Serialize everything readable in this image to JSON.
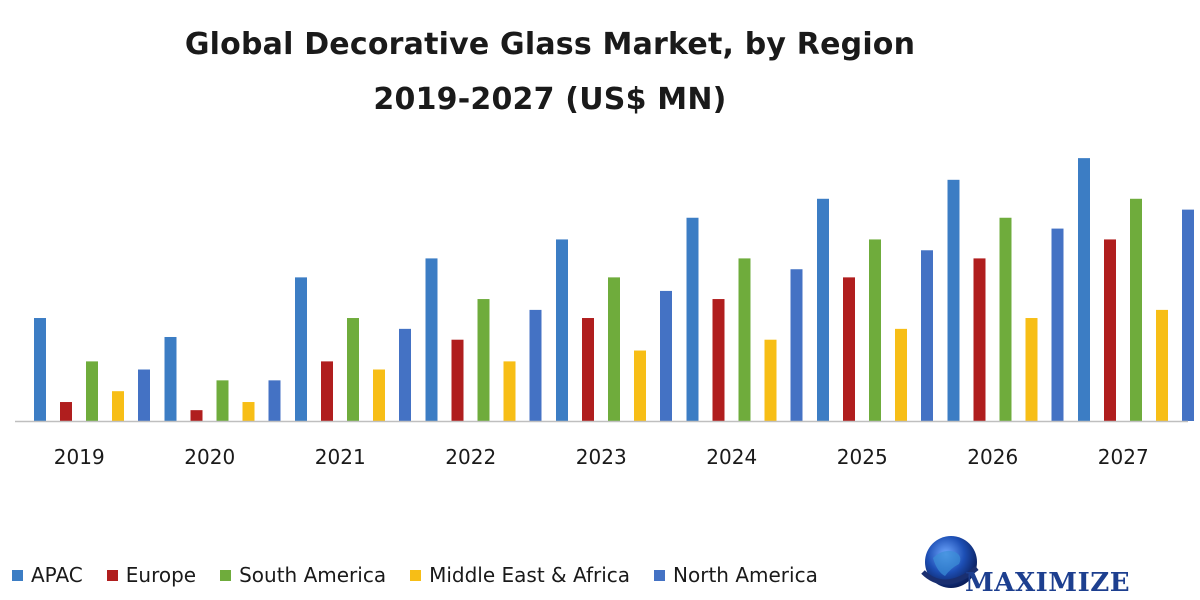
{
  "chart_data": {
    "type": "bar",
    "title": "Global Decorative Glass Market, by Region",
    "subtitle": "2019-2027 (US$ MN)",
    "xlabel": "",
    "ylabel": "",
    "ylim": [
      0,
      100
    ],
    "grid": false,
    "legend_position": "bottom",
    "categories": [
      "2019",
      "2020",
      "2021",
      "2022",
      "2023",
      "2024",
      "2025",
      "2026",
      "2027"
    ],
    "series": [
      {
        "name": "APAC",
        "color": "#3c7dc4",
        "values": [
          38,
          31,
          53,
          60,
          67,
          75,
          82,
          89,
          97
        ]
      },
      {
        "name": "Europe",
        "color": "#b01e1e",
        "values": [
          7,
          4,
          22,
          30,
          38,
          45,
          53,
          60,
          67
        ]
      },
      {
        "name": "South America",
        "color": "#6fac3c",
        "values": [
          22,
          15,
          38,
          45,
          53,
          60,
          67,
          75,
          82
        ]
      },
      {
        "name": "Middle East & Africa",
        "color": "#f7be16",
        "values": [
          11,
          7,
          19,
          22,
          26,
          30,
          34,
          38,
          41
        ]
      },
      {
        "name": "North America",
        "color": "#4472c4",
        "values": [
          19,
          15,
          34,
          41,
          48,
          56,
          63,
          71,
          78
        ]
      }
    ]
  },
  "logo": {
    "text": "MAXIMIZE"
  }
}
